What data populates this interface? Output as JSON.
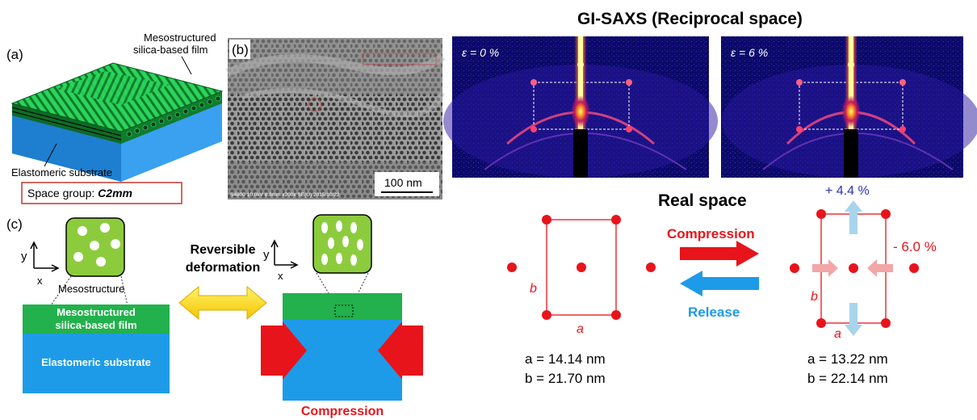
{
  "panel_a": {
    "tag": "(a)",
    "film_label_line1": "Mesostructured",
    "film_label_line2": "silica-based film",
    "substrate_label": "Elastomeric substrate",
    "space_group_prefix": "Space group: ",
    "space_group_value": "C2mm"
  },
  "panel_b": {
    "tag": "(b)",
    "scale_bar": "100 nm",
    "sem_info": "S4800 10.0kV 8.8mm x200k SE(U) 2015/10/22"
  },
  "panel_c": {
    "tag": "(c)",
    "mesostructure_label": "Mesostructure",
    "axis_y": "y",
    "axis_x": "x",
    "film_line1": "Mesostructured",
    "film_line2": "silica-based film",
    "substrate": "Elastomeric substrate",
    "reversible_line1": "Reversible",
    "reversible_line2": "deformation",
    "compression": "Compression"
  },
  "gisaxs": {
    "title": "GI-SAXS (Reciprocal space)",
    "left_strain": "ε = 0 %",
    "right_strain": "ε = 6 %"
  },
  "real_space": {
    "title": "Real space",
    "compression": "Compression",
    "release": "Release",
    "left_a_label": "a",
    "left_b_label": "b",
    "right_a_label": "a",
    "right_b_label": "b",
    "left_a_value": "a = 14.14 nm",
    "left_b_value": "b = 21.70 nm",
    "right_a_value": "a = 13.22 nm",
    "right_b_value": "b = 22.14 nm",
    "strain_y": "+ 4.4 %",
    "strain_x": "- 6.0 %"
  },
  "colors": {
    "film_green": "#22b14c",
    "substrate_blue": "#1e9be8",
    "lattice_red": "#e8141b",
    "arrow_blue": "#1e9be8",
    "pore_green": "#8ccc3c",
    "strain_blue": "#2b35b8"
  }
}
